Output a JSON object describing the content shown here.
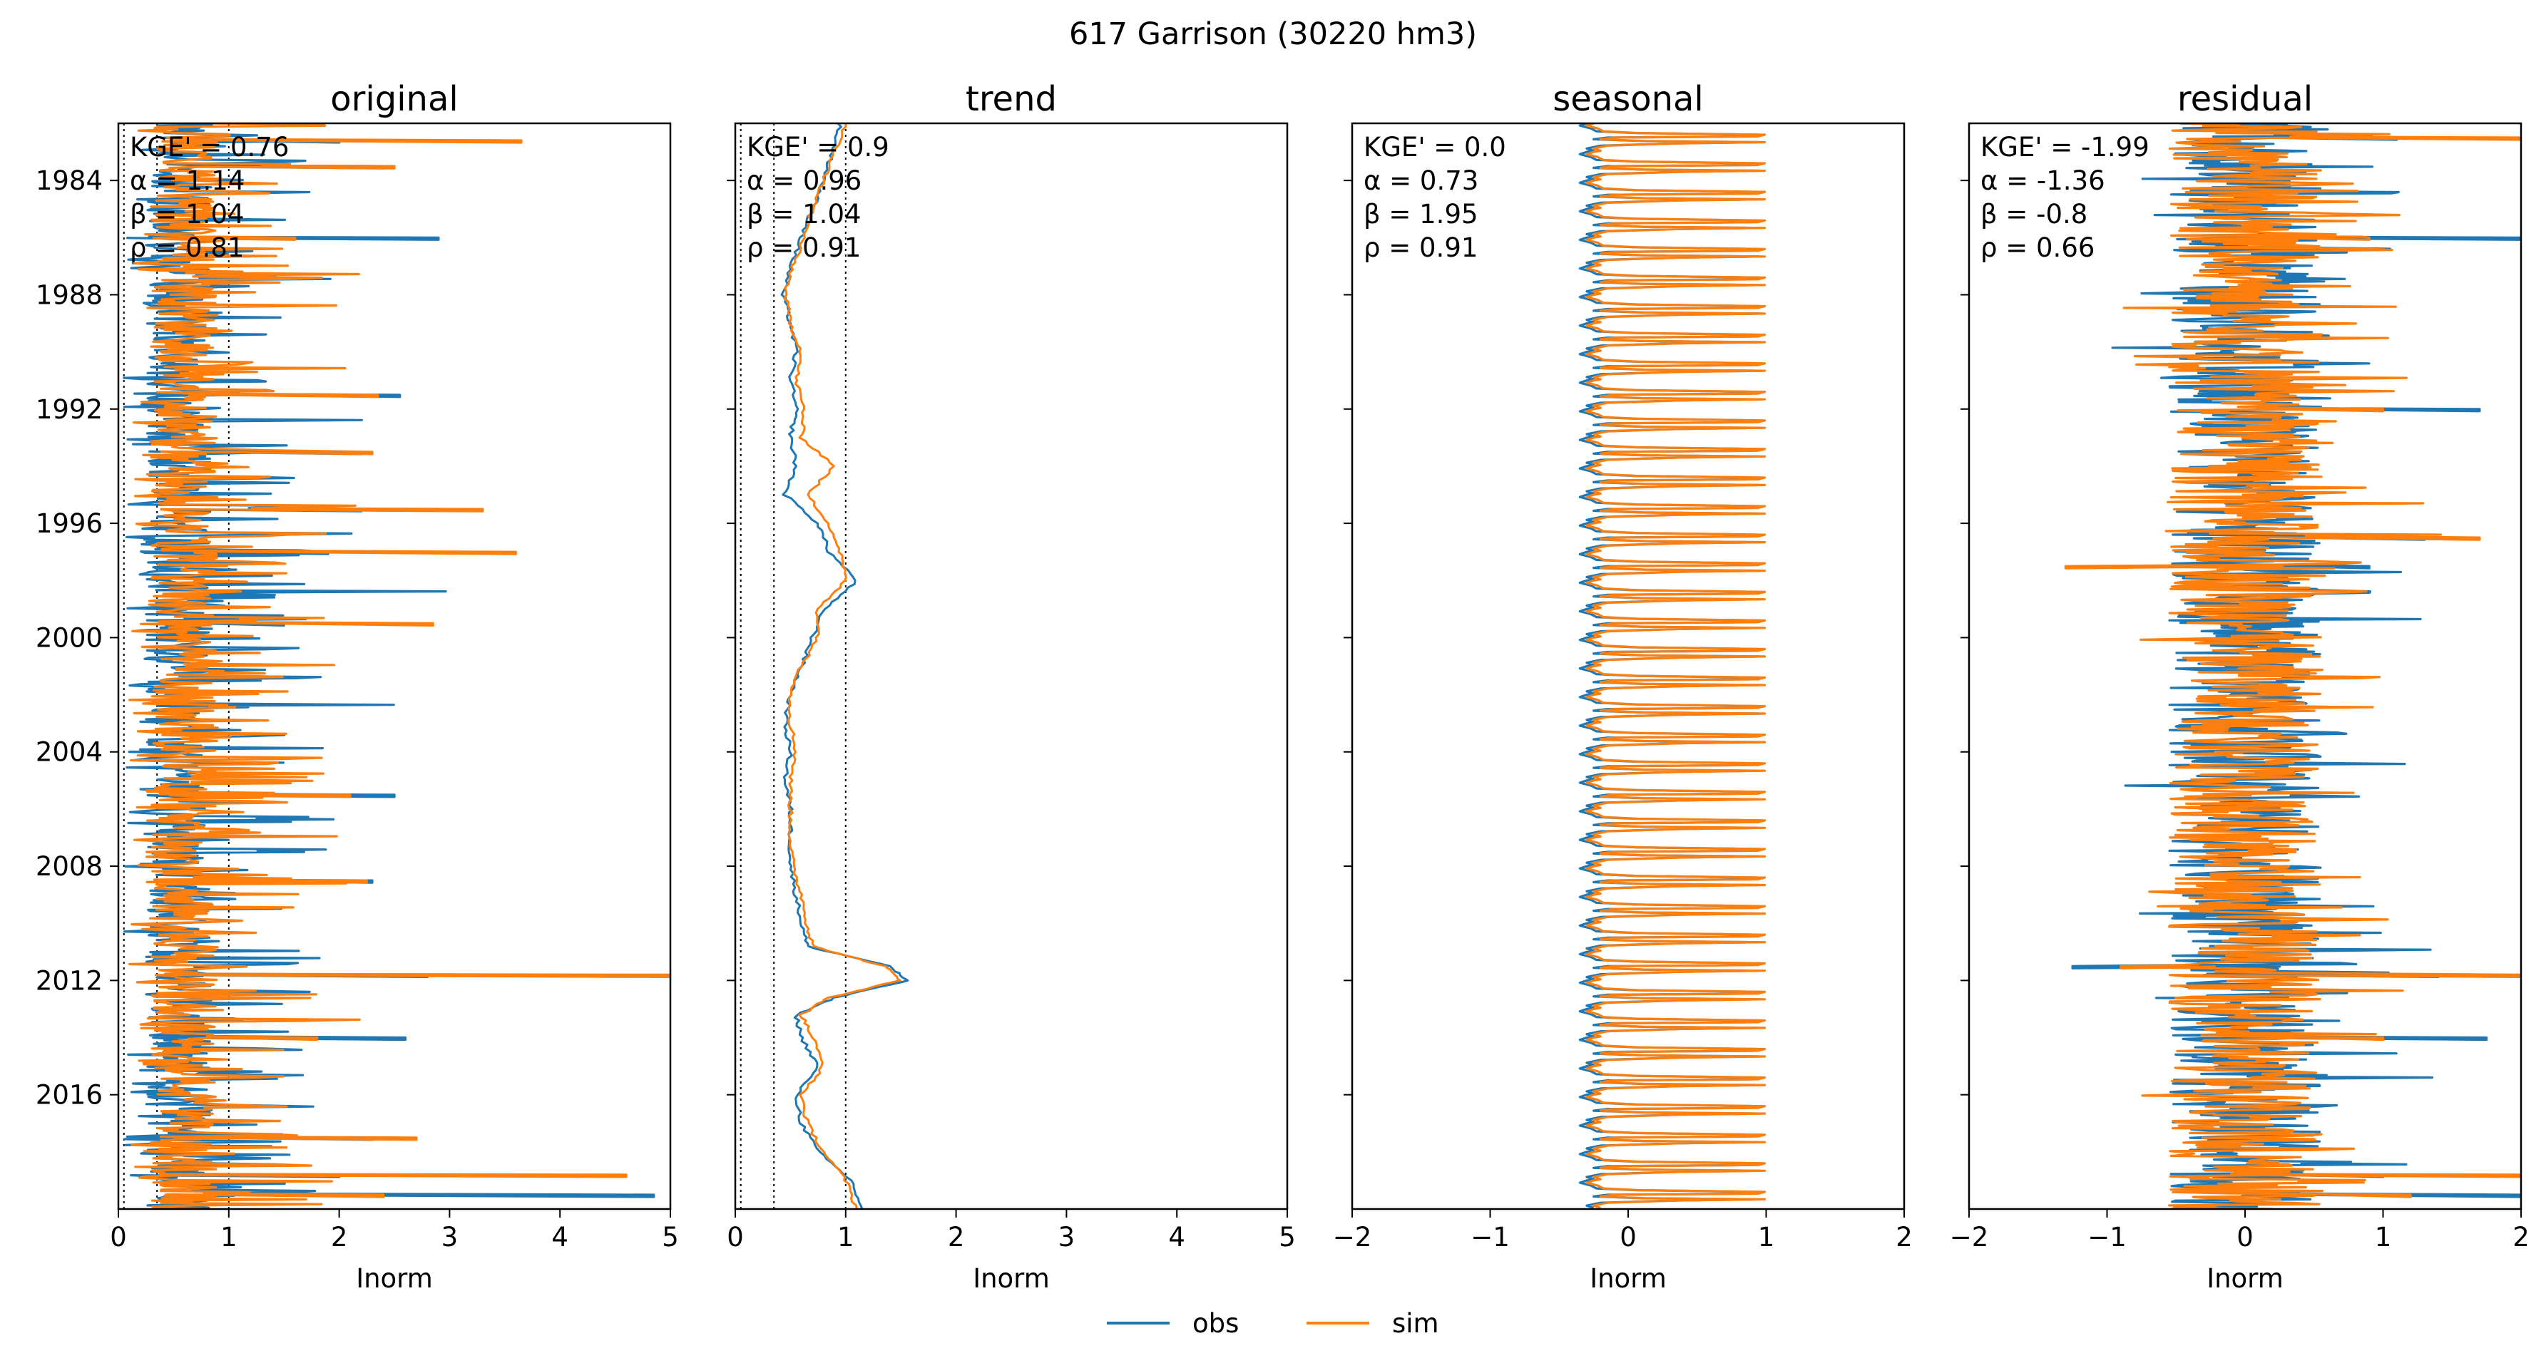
{
  "figure": {
    "suptitle": "617  Garrison (30220 hm3)"
  },
  "legend": {
    "entries": [
      {
        "label": "obs",
        "color": "#1f77b4"
      },
      {
        "label": "sim",
        "color": "#ff7f0e"
      }
    ]
  },
  "chart_data": [
    {
      "type": "line",
      "title": "original",
      "xlabel": "Inorm",
      "ylabel": "",
      "xlim": [
        0,
        5
      ],
      "xticks": [
        0,
        1,
        2,
        3,
        4,
        5
      ],
      "xtick_labels": [
        "0",
        "1",
        "2",
        "3",
        "4",
        "5"
      ],
      "ylim": [
        "1982-01-01",
        "2020-01-01"
      ],
      "yticks": [
        "1984",
        "1988",
        "1992",
        "1996",
        "2000",
        "2004",
        "2008",
        "2012",
        "2016"
      ],
      "y_inverted": true,
      "reference_lines_x": [
        0.05,
        0.35,
        1.0
      ],
      "metrics": [
        "KGE' = 0.76",
        "α = 1.14",
        "β = 1.04",
        "ρ = 0.81"
      ],
      "series": [
        {
          "name": "obs",
          "color": "#1f77b4",
          "y_start": 1982.0,
          "y_end": 2020.0,
          "x_range": [
            0.05,
            4.85
          ],
          "baseline": 0.55,
          "mean": 0.62,
          "spike_amp": 1.1
        },
        {
          "name": "sim",
          "color": "#ff7f0e",
          "y_start": 1982.0,
          "y_end": 2020.0,
          "x_range": [
            0.1,
            5.0
          ],
          "baseline": 0.6,
          "mean": 0.66,
          "spike_amp": 1.3
        }
      ],
      "peaks": [
        {
          "y": 1982.6,
          "obs": 2.0,
          "sim": 3.65
        },
        {
          "y": 1983.5,
          "obs": 2.4,
          "sim": 2.5
        },
        {
          "y": 1986.0,
          "obs": 2.9,
          "sim": 1.6
        },
        {
          "y": 1991.5,
          "obs": 2.55,
          "sim": 2.35
        },
        {
          "y": 1993.5,
          "obs": 2.2,
          "sim": 2.3
        },
        {
          "y": 1995.5,
          "obs": 2.2,
          "sim": 3.3
        },
        {
          "y": 1997.0,
          "obs": 1.9,
          "sim": 3.6
        },
        {
          "y": 1999.5,
          "obs": 1.5,
          "sim": 2.85
        },
        {
          "y": 2005.5,
          "obs": 2.5,
          "sim": 2.1
        },
        {
          "y": 2008.5,
          "obs": 2.3,
          "sim": 2.25
        },
        {
          "y": 2011.8,
          "obs": 2.8,
          "sim": 5.0
        },
        {
          "y": 2014.0,
          "obs": 2.6,
          "sim": 1.8
        },
        {
          "y": 2017.5,
          "obs": 2.3,
          "sim": 2.7
        },
        {
          "y": 2018.8,
          "obs": 2.0,
          "sim": 4.6
        },
        {
          "y": 2019.5,
          "obs": 4.85,
          "sim": 2.4
        }
      ]
    },
    {
      "type": "line",
      "title": "trend",
      "xlabel": "Inorm",
      "ylabel": "",
      "xlim": [
        0,
        5
      ],
      "xticks": [
        0,
        1,
        2,
        3,
        4,
        5
      ],
      "xtick_labels": [
        "0",
        "1",
        "2",
        "3",
        "4",
        "5"
      ],
      "ylim": [
        "1982-01-01",
        "2020-01-01"
      ],
      "y_inverted": true,
      "reference_lines_x": [
        0.05,
        0.35,
        1.0
      ],
      "metrics": [
        "KGE' = 0.9",
        "α = 0.96",
        "β = 1.04",
        "ρ = 0.91"
      ],
      "series": [
        {
          "name": "obs",
          "color": "#1f77b4",
          "y": [
            1982.0,
            1983.0,
            1984.0,
            1985.0,
            1986.0,
            1987.0,
            1988.0,
            1989.0,
            1990.0,
            1991.0,
            1992.0,
            1993.0,
            1994.0,
            1995.0,
            1996.0,
            1997.0,
            1998.0,
            1999.0,
            2000.0,
            2001.0,
            2002.0,
            2003.0,
            2004.0,
            2005.0,
            2006.0,
            2007.0,
            2008.0,
            2009.0,
            2010.0,
            2010.8,
            2011.5,
            2012.0,
            2012.6,
            2013.2,
            2014.0,
            2015.0,
            2016.0,
            2017.0,
            2018.0,
            2019.0,
            2020.0
          ],
          "x": [
            0.95,
            0.88,
            0.8,
            0.7,
            0.6,
            0.5,
            0.43,
            0.5,
            0.55,
            0.5,
            0.55,
            0.5,
            0.55,
            0.45,
            0.75,
            0.85,
            1.1,
            0.8,
            0.7,
            0.6,
            0.5,
            0.45,
            0.5,
            0.45,
            0.5,
            0.5,
            0.5,
            0.55,
            0.6,
            0.65,
            1.4,
            1.55,
            0.9,
            0.55,
            0.6,
            0.75,
            0.55,
            0.6,
            0.75,
            1.05,
            1.15
          ]
        },
        {
          "name": "sim",
          "color": "#ff7f0e",
          "y": [
            1982.0,
            1983.0,
            1984.0,
            1985.0,
            1986.0,
            1987.0,
            1988.0,
            1989.0,
            1990.0,
            1991.0,
            1992.0,
            1993.0,
            1994.0,
            1995.0,
            1996.0,
            1997.0,
            1998.0,
            1999.0,
            2000.0,
            2001.0,
            2002.0,
            2003.0,
            2004.0,
            2005.0,
            2006.0,
            2007.0,
            2008.0,
            2009.0,
            2010.0,
            2010.8,
            2011.5,
            2012.0,
            2012.6,
            2013.2,
            2014.0,
            2015.0,
            2016.0,
            2017.0,
            2018.0,
            2019.0,
            2020.0
          ],
          "x": [
            1.0,
            0.9,
            0.8,
            0.7,
            0.62,
            0.52,
            0.45,
            0.5,
            0.6,
            0.55,
            0.62,
            0.6,
            0.9,
            0.65,
            0.85,
            0.95,
            1.0,
            0.75,
            0.75,
            0.6,
            0.5,
            0.5,
            0.55,
            0.5,
            0.5,
            0.5,
            0.52,
            0.6,
            0.65,
            0.7,
            1.35,
            1.5,
            0.85,
            0.6,
            0.7,
            0.8,
            0.6,
            0.65,
            0.8,
            1.0,
            1.1
          ]
        }
      ]
    },
    {
      "type": "line",
      "title": "seasonal",
      "xlabel": "Inorm",
      "ylabel": "",
      "xlim": [
        -2,
        2
      ],
      "xticks": [
        -2,
        -1,
        0,
        1,
        2
      ],
      "xtick_labels": [
        "−2",
        "−1",
        "0",
        "1",
        "2"
      ],
      "ylim": [
        "1982-01-01",
        "2020-01-01"
      ],
      "y_inverted": true,
      "metrics": [
        "KGE' = 0.0",
        "α = 0.73",
        "β = 1.95",
        "ρ = 0.91"
      ],
      "series": [
        {
          "name": "obs",
          "color": "#1f77b4",
          "y_start": 1982.0,
          "y_end": 2020.0,
          "period_years": 1.0,
          "x_min": -0.35,
          "x_max": 0.95
        },
        {
          "name": "sim",
          "color": "#ff7f0e",
          "y_start": 1982.0,
          "y_end": 2020.0,
          "period_years": 1.0,
          "x_min": -0.32,
          "x_max": 0.97
        }
      ]
    },
    {
      "type": "line",
      "title": "residual",
      "xlabel": "Inorm",
      "ylabel": "",
      "xlim": [
        -2,
        2
      ],
      "xticks": [
        -2,
        -1,
        0,
        1,
        2
      ],
      "xtick_labels": [
        "−2",
        "−1",
        "0",
        "1",
        "2"
      ],
      "ylim": [
        "1982-01-01",
        "2020-01-01"
      ],
      "y_inverted": true,
      "metrics": [
        "KGE' = -1.99",
        "α = -1.36",
        "β = -0.8",
        "ρ = 0.66"
      ],
      "series": [
        {
          "name": "obs",
          "color": "#1f77b4",
          "y_start": 1982.0,
          "y_end": 2020.0,
          "x_range": [
            -1.25,
            2.0
          ],
          "amp": 0.55
        },
        {
          "name": "sim",
          "color": "#ff7f0e",
          "y_start": 1982.0,
          "y_end": 2020.0,
          "x_range": [
            -1.25,
            2.0
          ],
          "amp": 0.55
        }
      ],
      "peaks": [
        {
          "y": 1982.5,
          "obs": 1.1,
          "sim": 2.0
        },
        {
          "y": 1986.0,
          "obs": 2.0,
          "sim": 0.9
        },
        {
          "y": 1992.0,
          "obs": 1.7,
          "sim": 1.0
        },
        {
          "y": 1996.5,
          "obs": 1.3,
          "sim": 1.7
        },
        {
          "y": 1997.5,
          "obs": 0.9,
          "sim": -1.3
        },
        {
          "y": 2011.8,
          "obs": 1.4,
          "sim": 2.0
        },
        {
          "y": 2011.5,
          "obs": -1.25,
          "sim": -0.9
        },
        {
          "y": 2014.0,
          "obs": 1.75,
          "sim": 1.0
        },
        {
          "y": 2018.8,
          "obs": 1.0,
          "sim": 2.0
        },
        {
          "y": 2019.5,
          "obs": 2.0,
          "sim": 1.2
        }
      ]
    }
  ]
}
